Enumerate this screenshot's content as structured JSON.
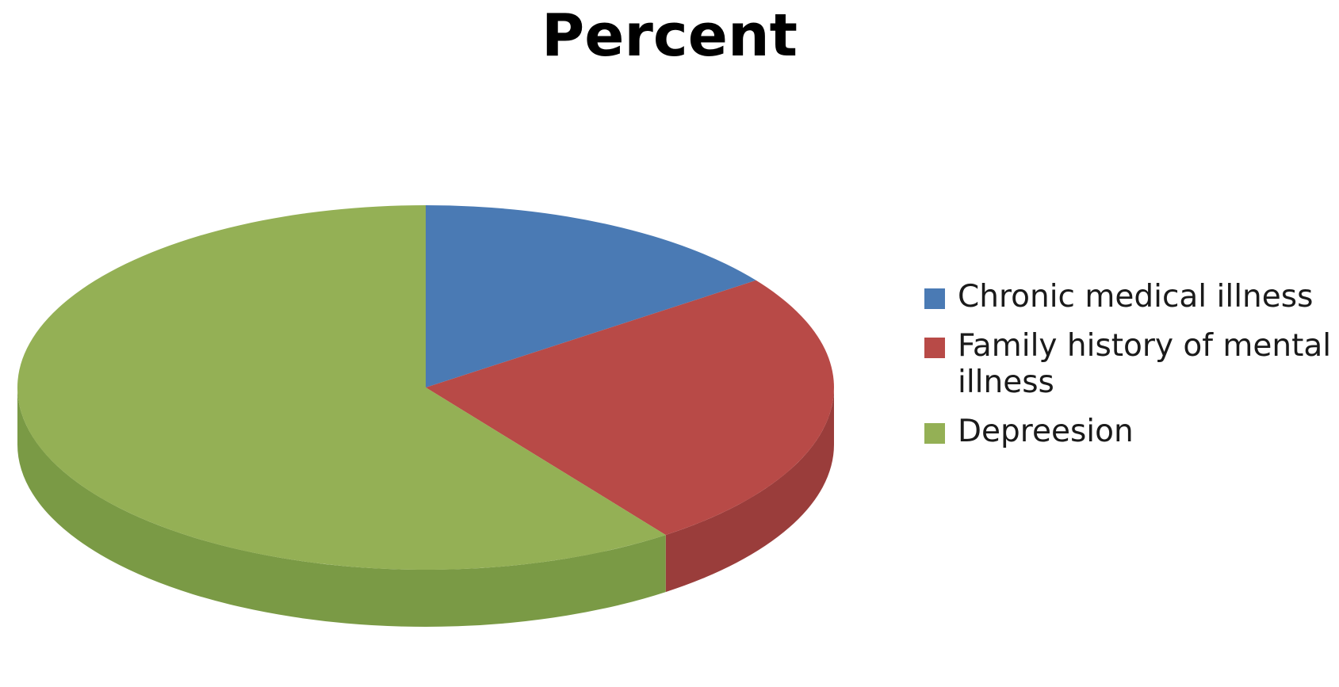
{
  "chart_data": {
    "type": "pie",
    "title": "Percent",
    "categories": [
      "Chronic medical illness",
      "Family history of mental illness",
      "Depreesion"
    ],
    "values": [
      15,
      25,
      60
    ],
    "colors": [
      "#4a7ab4",
      "#b84a47",
      "#94b055"
    ],
    "side_colors": [
      "#3a6196",
      "#9a3d3b",
      "#7a9a45"
    ],
    "legend_position": "right",
    "style": "3d"
  }
}
